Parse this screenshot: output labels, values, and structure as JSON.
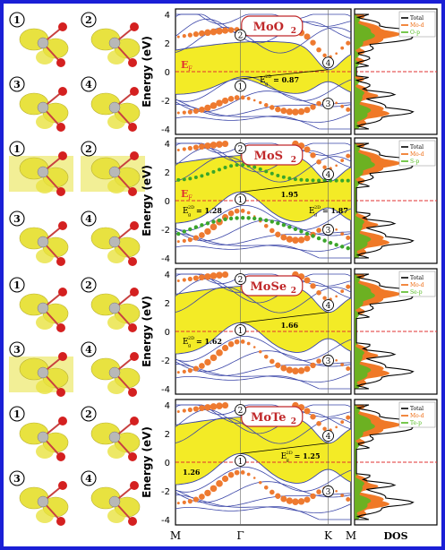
{
  "colors": {
    "frame": "#1a1fd6",
    "gap_fill": "#f2ea1a",
    "band_line": "#3a45a8",
    "orbital_band": "#ee7a30",
    "green_band": "#3aa52a",
    "total_dos": "#000000",
    "metal_d_dos": "#ee6a10",
    "chalcogen_p_dos": "#55bb22",
    "fermi_line": "#e03030",
    "isosurface": "#e8e240",
    "oxygen_atom": "#d42020",
    "metal_atom": "#b8b8b8"
  },
  "orbital_labels": [
    "1",
    "2",
    "3",
    "4"
  ],
  "yaxis_label": "Energy (eV)",
  "xticks": [
    "M",
    "Γ",
    "K",
    "M"
  ],
  "dos_label": "DOS",
  "fermi_label": "E",
  "fermi_sub": "F",
  "panels": [
    {
      "name": "MoO",
      "name_sub": "2",
      "ylim": [
        -4,
        4
      ],
      "yticks": [
        "4",
        "2",
        "0",
        "-2",
        "-4"
      ],
      "band_markers": [
        "2",
        "1",
        "4",
        "3"
      ],
      "gap_labels": [
        {
          "main": "E",
          "sup": "2D",
          "sub": "g",
          "value": "= 0.87"
        }
      ],
      "legend": [
        "Total",
        "Mo-d",
        "O-p"
      ]
    },
    {
      "name": "MoS",
      "name_sub": "2",
      "ylim": [
        -4,
        4
      ],
      "yticks": [
        "4",
        "2",
        "0",
        "-2",
        "-4"
      ],
      "band_markers": [
        "2",
        "1",
        "4",
        "3"
      ],
      "gap_labels": [
        {
          "main": "E",
          "sup": "2D",
          "sub": "g",
          "value": "= 1.28"
        },
        {
          "main": "",
          "sup": "",
          "sub": "",
          "value": "1.95"
        },
        {
          "main": "E",
          "sup": "2D",
          "sub": "g",
          "value": "= 1.87"
        }
      ],
      "legend": [
        "Total",
        "Mo-d",
        "S-p"
      ]
    },
    {
      "name": "MoSe",
      "name_sub": "2",
      "ylim": [
        -4,
        4
      ],
      "yticks": [
        "4",
        "2",
        "0",
        "-2",
        "-4"
      ],
      "band_markers": [
        "2",
        "1",
        "4",
        "3"
      ],
      "gap_labels": [
        {
          "main": "E",
          "sup": "2D",
          "sub": "g",
          "value": "= 1.62"
        },
        {
          "main": "",
          "sup": "",
          "sub": "",
          "value": "1.66"
        }
      ],
      "legend": [
        "Total",
        "Mo-d",
        "Se-p"
      ]
    },
    {
      "name": "MoTe",
      "name_sub": "2",
      "ylim": [
        -4,
        4
      ],
      "yticks": [
        "4",
        "2",
        "0",
        "-2",
        "-4"
      ],
      "band_markers": [
        "2",
        "1",
        "4",
        "3"
      ],
      "gap_labels": [
        {
          "main": "",
          "sup": "",
          "sub": "",
          "value": "1.26"
        },
        {
          "main": "E",
          "sup": "2D",
          "sub": "g",
          "value": "= 1.25"
        }
      ],
      "legend": [
        "Total",
        "Mo-d",
        "Te-p"
      ]
    }
  ]
}
